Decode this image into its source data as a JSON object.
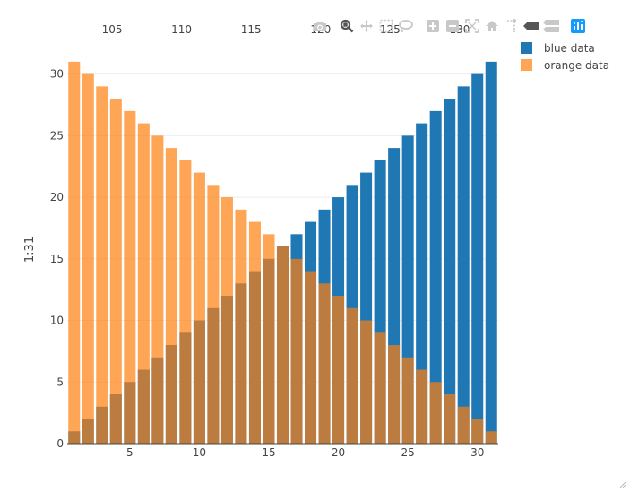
{
  "modebar": {
    "icons": [
      "camera-icon",
      "zoom-icon",
      "pan-icon",
      "box-select-icon",
      "lasso-icon",
      "zoom-in-icon",
      "zoom-out-icon",
      "autoscale-icon",
      "home-icon",
      "spike-lines-icon",
      "hover-closest-icon",
      "hover-compare-icon",
      "plotly-logo-icon"
    ],
    "colors": {
      "inactive": "#c8c8c8",
      "active": "#555555",
      "logo": "#119dff"
    }
  },
  "chart_data": {
    "type": "bar",
    "barmode": "overlay",
    "xlim": [
      0.5,
      31.5
    ],
    "ylim": [
      0,
      31.5
    ],
    "x": [
      1,
      2,
      3,
      4,
      5,
      6,
      7,
      8,
      9,
      10,
      11,
      12,
      13,
      14,
      15,
      16,
      17,
      18,
      19,
      20,
      21,
      22,
      23,
      24,
      25,
      26,
      27,
      28,
      29,
      30,
      31
    ],
    "series": [
      {
        "name": "blue data",
        "color": "#1f77b4",
        "opacity": 1,
        "values": [
          1,
          2,
          3,
          4,
          5,
          6,
          7,
          8,
          9,
          10,
          11,
          12,
          13,
          14,
          15,
          16,
          17,
          18,
          19,
          20,
          21,
          22,
          23,
          24,
          25,
          26,
          27,
          28,
          29,
          30,
          31
        ]
      },
      {
        "name": "orange data",
        "color": "#ff7f0e",
        "opacity": 0.7,
        "values": [
          31,
          30,
          29,
          28,
          27,
          26,
          25,
          24,
          23,
          22,
          21,
          20,
          19,
          18,
          17,
          16,
          15,
          14,
          13,
          12,
          11,
          10,
          9,
          8,
          7,
          6,
          5,
          4,
          3,
          2,
          1
        ]
      }
    ],
    "xticks": [
      5,
      10,
      15,
      20,
      25,
      30
    ],
    "xtick_labels": [
      "5",
      "10",
      "15",
      "20",
      "25",
      "30"
    ],
    "yticks": [
      0,
      5,
      10,
      15,
      20,
      25,
      30
    ],
    "ytick_labels": [
      "0",
      "5",
      "10",
      "15",
      "20",
      "25",
      "30"
    ],
    "x2lim": [
      101.775,
      132.775
    ],
    "x2ticks": [
      105,
      110,
      115,
      120,
      125,
      130
    ],
    "x2tick_labels": [
      "105",
      "110",
      "115",
      "120",
      "125",
      "130"
    ],
    "ylabel": "1:31",
    "xlabel": "",
    "grid": true,
    "legend_position": "top-right"
  }
}
